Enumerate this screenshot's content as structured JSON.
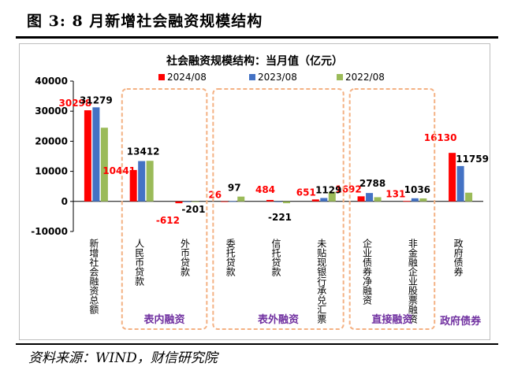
{
  "figure_title": "图 3:  8 月新增社会融资规模结构",
  "source": "资料来源：WIND，财信研究院",
  "colors": {
    "s2024": "#ff0000",
    "s2023": "#4472c4",
    "s2022": "#9bbb59",
    "group_box": "#f4b183",
    "group_label": "#7030a0"
  },
  "chart_data": {
    "type": "bar",
    "title": "社会融资规模结构：当月值（亿元）",
    "categories": [
      "新增社会融资总额",
      "人民币贷款",
      "外币贷款",
      "委托贷款",
      "信托贷款",
      "未贴现银行承兑汇票",
      "企业债券净融资",
      "非金融企业股票融资",
      "政府债券"
    ],
    "series": [
      {
        "name": "2024/08",
        "values": [
          30298,
          10441,
          -612,
          26,
          484,
          651,
          1692,
          131,
          16130
        ],
        "labeled": true
      },
      {
        "name": "2023/08",
        "values": [
          31279,
          13412,
          -201,
          97,
          -221,
          1129,
          2788,
          1036,
          11759
        ],
        "labeled": true
      },
      {
        "name": "2022/08",
        "values": [
          24500,
          13500,
          -100,
          1600,
          -600,
          3200,
          1400,
          1000,
          2900
        ],
        "labeled": false
      }
    ],
    "ylim": [
      -10000,
      40000
    ],
    "yticks": [
      -10000,
      0,
      10000,
      20000,
      30000,
      40000
    ],
    "groups": [
      {
        "label": "表内融资",
        "categories": [
          1,
          2
        ]
      },
      {
        "label": "表外融资",
        "categories": [
          3,
          4,
          5
        ]
      },
      {
        "label": "直接融资",
        "categories": [
          6,
          7
        ]
      },
      {
        "label": "政府债券",
        "categories": [
          8
        ]
      }
    ],
    "legend_position": "top"
  }
}
